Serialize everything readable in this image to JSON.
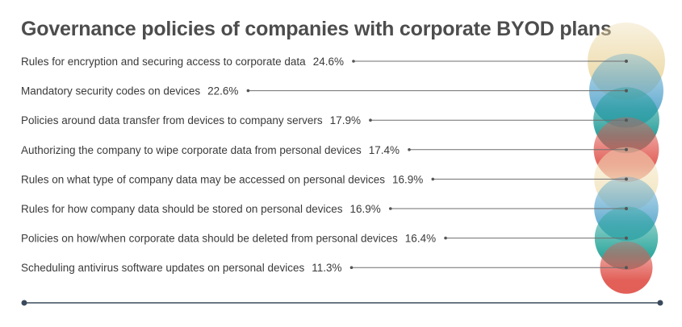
{
  "chart_data": {
    "type": "bubble",
    "title": "Governance policies of companies with corporate BYOD plans",
    "value_suffix": "%",
    "categories": [
      "Rules for encryption and securing access to corporate data",
      "Mandatory security codes on devices",
      "Policies around data transfer from devices to company servers",
      "Authorizing the company to wipe corporate data from personal devices",
      "Rules on what type of company data may be accessed on personal devices",
      "Rules for how company data should be stored on personal devices",
      "Policies on how/when corporate data should be deleted from personal devices",
      "Scheduling antivirus software updates on personal devices"
    ],
    "values": [
      24.6,
      22.6,
      17.9,
      17.4,
      16.9,
      16.9,
      16.4,
      11.3
    ],
    "bubble_colors": [
      "#ecd9a6",
      "#5fa9cf",
      "#1e9b96",
      "#e0574f",
      "#f3e6c2",
      "#5fa9cf",
      "#2aa69b",
      "#e0574f"
    ],
    "legend": "none",
    "grid": false
  }
}
